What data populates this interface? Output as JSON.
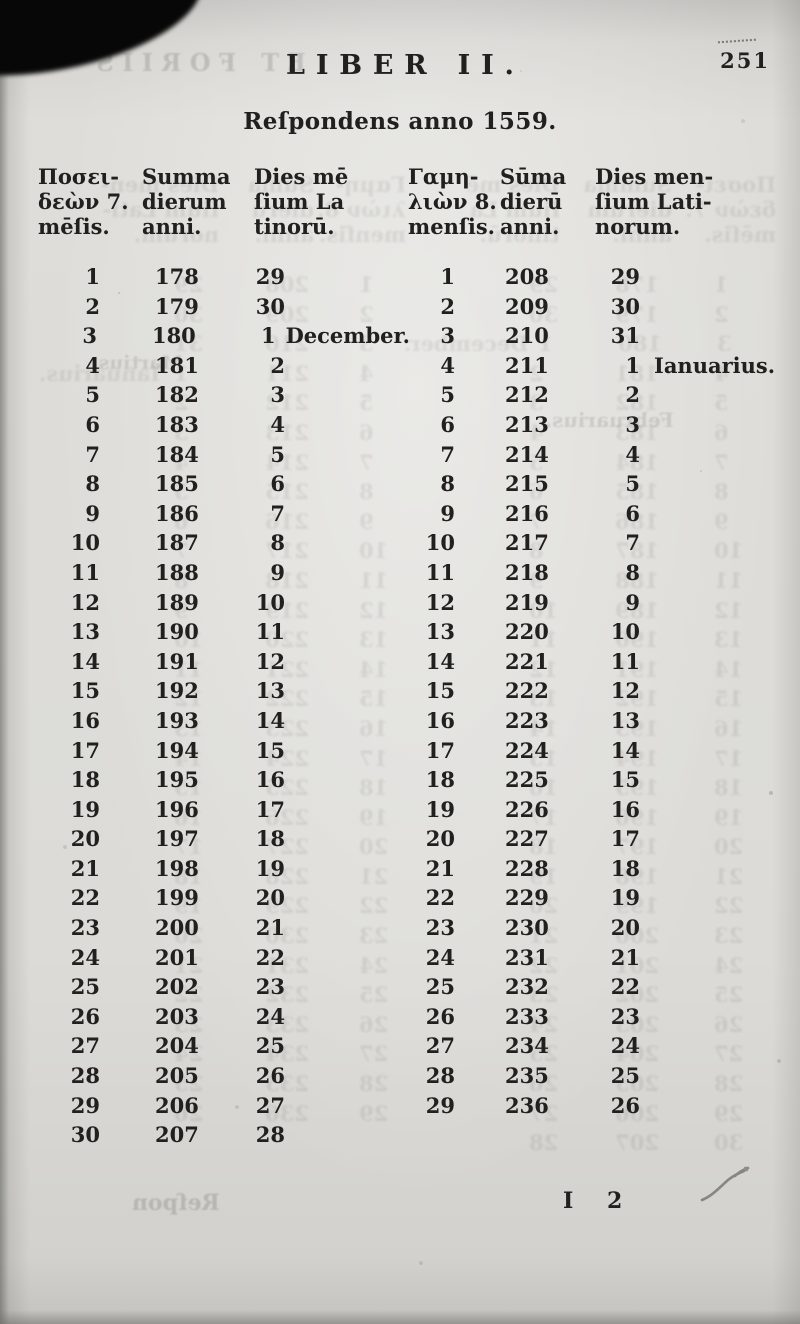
{
  "page": {
    "running_header": "LIBER II.",
    "page_number": "251",
    "title": "Reſpondens anno 1559.",
    "signature": "I 2"
  },
  "table": {
    "left": {
      "headers": [
        {
          "lines": [
            "Ποσει-",
            "δεὼν 7.",
            "mēſis."
          ]
        },
        {
          "lines": [
            "Summa",
            "dierum",
            "anni."
          ]
        },
        {
          "lines": [
            "Dies mē",
            "ſium La",
            "tinorū."
          ]
        }
      ],
      "rows": [
        {
          "day": "1",
          "summa": "178",
          "dies": "29",
          "month": ""
        },
        {
          "day": "2",
          "summa": "179",
          "dies": "30",
          "month": ""
        },
        {
          "day": "3",
          "summa": "180",
          "dies": "1",
          "month": "December."
        },
        {
          "day": "4",
          "summa": "181",
          "dies": "2",
          "month": ""
        },
        {
          "day": "5",
          "summa": "182",
          "dies": "3",
          "month": ""
        },
        {
          "day": "6",
          "summa": "183",
          "dies": "4",
          "month": ""
        },
        {
          "day": "7",
          "summa": "184",
          "dies": "5",
          "month": ""
        },
        {
          "day": "8",
          "summa": "185",
          "dies": "6",
          "month": ""
        },
        {
          "day": "9",
          "summa": "186",
          "dies": "7",
          "month": ""
        },
        {
          "day": "10",
          "summa": "187",
          "dies": "8",
          "month": ""
        },
        {
          "day": "11",
          "summa": "188",
          "dies": "9",
          "month": ""
        },
        {
          "day": "12",
          "summa": "189",
          "dies": "10",
          "month": ""
        },
        {
          "day": "13",
          "summa": "190",
          "dies": "11",
          "month": ""
        },
        {
          "day": "14",
          "summa": "191",
          "dies": "12",
          "month": ""
        },
        {
          "day": "15",
          "summa": "192",
          "dies": "13",
          "month": ""
        },
        {
          "day": "16",
          "summa": "193",
          "dies": "14",
          "month": ""
        },
        {
          "day": "17",
          "summa": "194",
          "dies": "15",
          "month": ""
        },
        {
          "day": "18",
          "summa": "195",
          "dies": "16",
          "month": ""
        },
        {
          "day": "19",
          "summa": "196",
          "dies": "17",
          "month": ""
        },
        {
          "day": "20",
          "summa": "197",
          "dies": "18",
          "month": ""
        },
        {
          "day": "21",
          "summa": "198",
          "dies": "19",
          "month": ""
        },
        {
          "day": "22",
          "summa": "199",
          "dies": "20",
          "month": ""
        },
        {
          "day": "23",
          "summa": "200",
          "dies": "21",
          "month": ""
        },
        {
          "day": "24",
          "summa": "201",
          "dies": "22",
          "month": ""
        },
        {
          "day": "25",
          "summa": "202",
          "dies": "23",
          "month": ""
        },
        {
          "day": "26",
          "summa": "203",
          "dies": "24",
          "month": ""
        },
        {
          "day": "27",
          "summa": "204",
          "dies": "25",
          "month": ""
        },
        {
          "day": "28",
          "summa": "205",
          "dies": "26",
          "month": ""
        },
        {
          "day": "29",
          "summa": "206",
          "dies": "27",
          "month": ""
        },
        {
          "day": "30",
          "summa": "207",
          "dies": "28",
          "month": ""
        }
      ]
    },
    "right": {
      "headers": [
        {
          "lines": [
            "Γαμη-",
            "λιὼν 8.",
            "menſis."
          ]
        },
        {
          "lines": [
            "Sūma",
            "dierū",
            "anni."
          ]
        },
        {
          "lines": [
            "Dies men-",
            "ſium Lati-",
            "norum."
          ]
        }
      ],
      "rows": [
        {
          "day": "1",
          "summa": "208",
          "dies": "29",
          "month": ""
        },
        {
          "day": "2",
          "summa": "209",
          "dies": "30",
          "month": ""
        },
        {
          "day": "3",
          "summa": "210",
          "dies": "31",
          "month": ""
        },
        {
          "day": "4",
          "summa": "211",
          "dies": "1",
          "month": "Ianuarius."
        },
        {
          "day": "5",
          "summa": "212",
          "dies": "2",
          "month": ""
        },
        {
          "day": "6",
          "summa": "213",
          "dies": "3",
          "month": ""
        },
        {
          "day": "7",
          "summa": "214",
          "dies": "4",
          "month": ""
        },
        {
          "day": "8",
          "summa": "215",
          "dies": "5",
          "month": ""
        },
        {
          "day": "9",
          "summa": "216",
          "dies": "6",
          "month": ""
        },
        {
          "day": "10",
          "summa": "217",
          "dies": "7",
          "month": ""
        },
        {
          "day": "11",
          "summa": "218",
          "dies": "8",
          "month": ""
        },
        {
          "day": "12",
          "summa": "219",
          "dies": "9",
          "month": ""
        },
        {
          "day": "13",
          "summa": "220",
          "dies": "10",
          "month": ""
        },
        {
          "day": "14",
          "summa": "221",
          "dies": "11",
          "month": ""
        },
        {
          "day": "15",
          "summa": "222",
          "dies": "12",
          "month": ""
        },
        {
          "day": "16",
          "summa": "223",
          "dies": "13",
          "month": ""
        },
        {
          "day": "17",
          "summa": "224",
          "dies": "14",
          "month": ""
        },
        {
          "day": "18",
          "summa": "225",
          "dies": "15",
          "month": ""
        },
        {
          "day": "19",
          "summa": "226",
          "dies": "16",
          "month": ""
        },
        {
          "day": "20",
          "summa": "227",
          "dies": "17",
          "month": ""
        },
        {
          "day": "21",
          "summa": "228",
          "dies": "18",
          "month": ""
        },
        {
          "day": "22",
          "summa": "229",
          "dies": "19",
          "month": ""
        },
        {
          "day": "23",
          "summa": "230",
          "dies": "20",
          "month": ""
        },
        {
          "day": "24",
          "summa": "231",
          "dies": "21",
          "month": ""
        },
        {
          "day": "25",
          "summa": "232",
          "dies": "22",
          "month": ""
        },
        {
          "day": "26",
          "summa": "233",
          "dies": "23",
          "month": ""
        },
        {
          "day": "27",
          "summa": "234",
          "dies": "24",
          "month": ""
        },
        {
          "day": "28",
          "summa": "235",
          "dies": "25",
          "month": ""
        },
        {
          "day": "29",
          "summa": "236",
          "dies": "26",
          "month": ""
        }
      ]
    }
  },
  "bleedthrough": {
    "header_fragment": "ET FORIIS",
    "month_fragments": [
      "Martius.",
      "Februarius."
    ],
    "catchword": "Reſpon"
  },
  "colors": {
    "paper": "#dcdbd7",
    "ink": "#21201e",
    "edge_shadow": "#070707"
  }
}
